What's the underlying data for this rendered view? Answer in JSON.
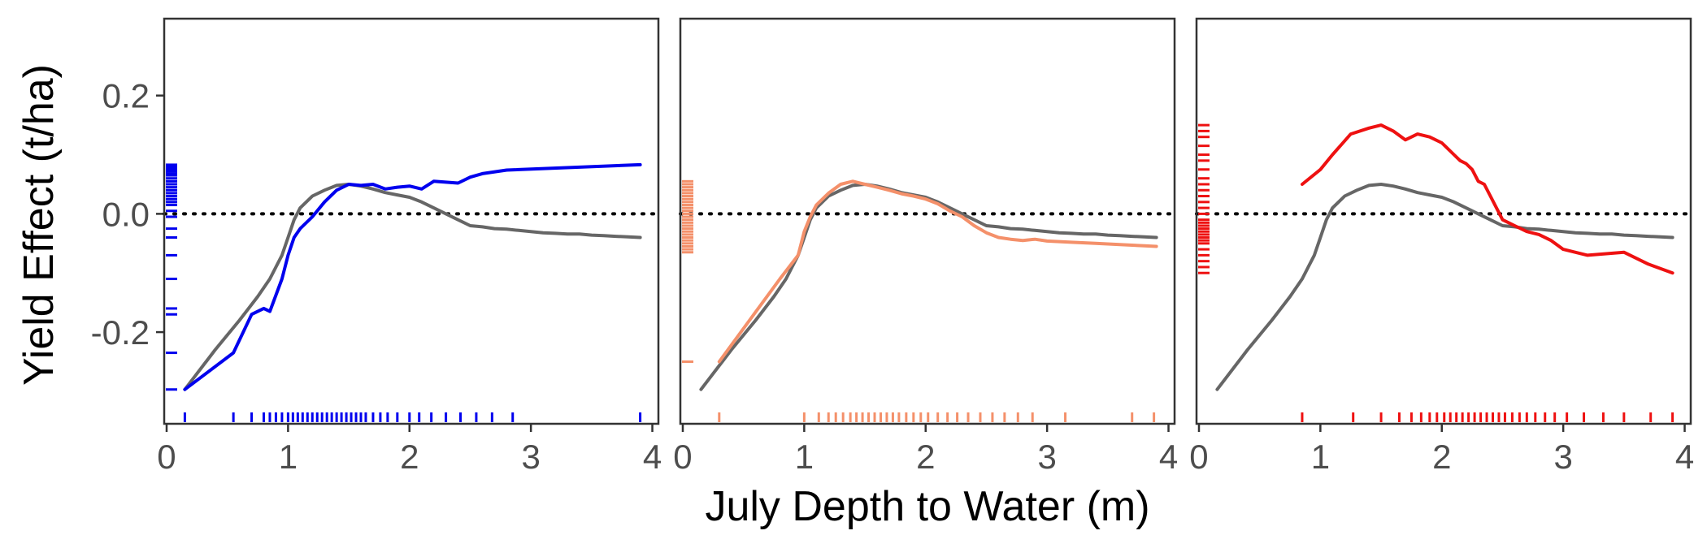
{
  "chart_data": {
    "type": "line",
    "xlabel": "July Depth to Water (m)",
    "ylabel": "Yield Effect (t/ha)",
    "xlim": [
      -0.02,
      4.05
    ],
    "ylim": [
      -0.355,
      0.33
    ],
    "x_ticks": [
      0,
      1,
      2,
      3,
      4
    ],
    "x_tick_labels": [
      "0",
      "1",
      "2",
      "3",
      "4"
    ],
    "y_ticks": [
      -0.2,
      0.0,
      0.2
    ],
    "y_tick_labels": [
      "-0.2",
      "0.0",
      "0.2"
    ],
    "zero_reference": 0,
    "grid": false,
    "legend": "none",
    "reference_series": {
      "color": "#666666",
      "x": [
        0.15,
        0.4,
        0.6,
        0.75,
        0.85,
        0.9,
        0.95,
        1.0,
        1.05,
        1.1,
        1.15,
        1.2,
        1.3,
        1.4,
        1.5,
        1.6,
        1.7,
        1.8,
        1.9,
        2.0,
        2.1,
        2.2,
        2.3,
        2.4,
        2.5,
        2.6,
        2.7,
        2.8,
        2.9,
        3.0,
        3.1,
        3.2,
        3.3,
        3.4,
        3.5,
        3.6,
        3.7,
        3.8,
        3.9
      ],
      "y": [
        -0.297,
        -0.23,
        -0.18,
        -0.14,
        -0.11,
        -0.09,
        -0.07,
        -0.04,
        -0.01,
        0.01,
        0.02,
        0.03,
        0.04,
        0.048,
        0.05,
        0.047,
        0.042,
        0.036,
        0.032,
        0.028,
        0.02,
        0.01,
        0.0,
        -0.01,
        -0.02,
        -0.022,
        -0.025,
        -0.026,
        -0.028,
        -0.03,
        -0.032,
        -0.033,
        -0.034,
        -0.034,
        -0.036,
        -0.037,
        -0.038,
        -0.039,
        -0.04
      ]
    },
    "panels": [
      {
        "color": "#0000ee",
        "series": {
          "x": [
            0.15,
            0.55,
            0.7,
            0.8,
            0.85,
            0.95,
            1.0,
            1.05,
            1.1,
            1.2,
            1.3,
            1.4,
            1.5,
            1.6,
            1.7,
            1.8,
            1.9,
            2.0,
            2.1,
            2.2,
            2.4,
            2.5,
            2.6,
            2.8,
            3.9
          ],
          "y": [
            -0.297,
            -0.235,
            -0.17,
            -0.16,
            -0.165,
            -0.11,
            -0.07,
            -0.04,
            -0.025,
            -0.005,
            0.02,
            0.04,
            0.05,
            0.048,
            0.05,
            0.042,
            0.045,
            0.047,
            0.042,
            0.055,
            0.052,
            0.062,
            0.068,
            0.074,
            0.083
          ]
        },
        "rug_x": [
          0.15,
          0.55,
          0.7,
          0.8,
          0.85,
          0.9,
          0.95,
          1.0,
          1.04,
          1.08,
          1.12,
          1.16,
          1.2,
          1.24,
          1.28,
          1.32,
          1.36,
          1.4,
          1.44,
          1.48,
          1.52,
          1.56,
          1.6,
          1.64,
          1.7,
          1.76,
          1.82,
          1.9,
          2.0,
          2.08,
          2.18,
          2.3,
          2.42,
          2.55,
          2.68,
          2.85,
          3.9
        ],
        "rug_y": [
          -0.297,
          -0.235,
          -0.17,
          -0.16,
          -0.11,
          -0.07,
          -0.04,
          -0.025,
          -0.005,
          0.005,
          0.015,
          0.02,
          0.025,
          0.03,
          0.035,
          0.04,
          0.045,
          0.05,
          0.055,
          0.06,
          0.065,
          0.068,
          0.072,
          0.075,
          0.078,
          0.08,
          0.083
        ]
      },
      {
        "color": "#f4906a",
        "series": {
          "x": [
            0.3,
            0.55,
            0.8,
            0.95,
            1.0,
            1.05,
            1.1,
            1.2,
            1.3,
            1.4,
            1.5,
            1.6,
            1.7,
            1.8,
            1.9,
            2.0,
            2.1,
            2.2,
            2.3,
            2.4,
            2.5,
            2.6,
            2.7,
            2.8,
            2.9,
            3.0,
            3.2,
            3.4,
            3.6,
            3.8,
            3.9
          ],
          "y": [
            -0.25,
            -0.18,
            -0.11,
            -0.07,
            -0.03,
            -0.005,
            0.015,
            0.035,
            0.05,
            0.055,
            0.05,
            0.045,
            0.04,
            0.034,
            0.03,
            0.025,
            0.017,
            0.005,
            -0.005,
            -0.02,
            -0.032,
            -0.04,
            -0.043,
            -0.045,
            -0.043,
            -0.046,
            -0.048,
            -0.05,
            -0.052,
            -0.054,
            -0.055
          ]
        },
        "rug_x": [
          0.3,
          1.0,
          1.12,
          1.2,
          1.26,
          1.32,
          1.38,
          1.43,
          1.48,
          1.53,
          1.58,
          1.63,
          1.68,
          1.73,
          1.78,
          1.84,
          1.9,
          1.96,
          2.02,
          2.1,
          2.18,
          2.26,
          2.35,
          2.45,
          2.55,
          2.65,
          2.76,
          2.88,
          3.15,
          3.7,
          3.88
        ],
        "rug_y": [
          -0.25,
          -0.065,
          -0.06,
          -0.055,
          -0.05,
          -0.045,
          -0.04,
          -0.035,
          -0.03,
          -0.025,
          -0.02,
          -0.015,
          -0.01,
          -0.005,
          0.0,
          0.005,
          0.01,
          0.015,
          0.02,
          0.025,
          0.03,
          0.035,
          0.04,
          0.045,
          0.05,
          0.055
        ]
      },
      {
        "color": "#ee1111",
        "series": {
          "x": [
            0.85,
            1.0,
            1.1,
            1.25,
            1.4,
            1.5,
            1.6,
            1.7,
            1.8,
            1.9,
            2.0,
            2.1,
            2.15,
            2.2,
            2.25,
            2.3,
            2.35,
            2.4,
            2.45,
            2.5,
            2.6,
            2.7,
            2.8,
            2.9,
            3.0,
            3.2,
            3.5,
            3.7,
            3.9
          ],
          "y": [
            0.05,
            0.075,
            0.1,
            0.135,
            0.145,
            0.15,
            0.14,
            0.125,
            0.135,
            0.13,
            0.12,
            0.1,
            0.09,
            0.085,
            0.075,
            0.055,
            0.05,
            0.03,
            0.01,
            -0.01,
            -0.02,
            -0.03,
            -0.035,
            -0.045,
            -0.06,
            -0.07,
            -0.065,
            -0.085,
            -0.1
          ]
        },
        "rug_x": [
          0.85,
          1.27,
          1.5,
          1.65,
          1.75,
          1.83,
          1.9,
          1.96,
          2.02,
          2.07,
          2.12,
          2.17,
          2.22,
          2.27,
          2.32,
          2.37,
          2.42,
          2.47,
          2.52,
          2.58,
          2.64,
          2.7,
          2.77,
          2.85,
          2.93,
          3.03,
          3.17,
          3.33,
          3.5,
          3.72,
          3.9
        ],
        "rug_y": [
          -0.1,
          -0.09,
          -0.08,
          -0.07,
          -0.06,
          -0.05,
          -0.045,
          -0.04,
          -0.035,
          -0.03,
          -0.025,
          -0.02,
          -0.015,
          -0.01,
          0.0,
          0.01,
          0.02,
          0.03,
          0.04,
          0.05,
          0.06,
          0.075,
          0.09,
          0.1,
          0.115,
          0.13,
          0.14,
          0.15
        ]
      }
    ]
  }
}
